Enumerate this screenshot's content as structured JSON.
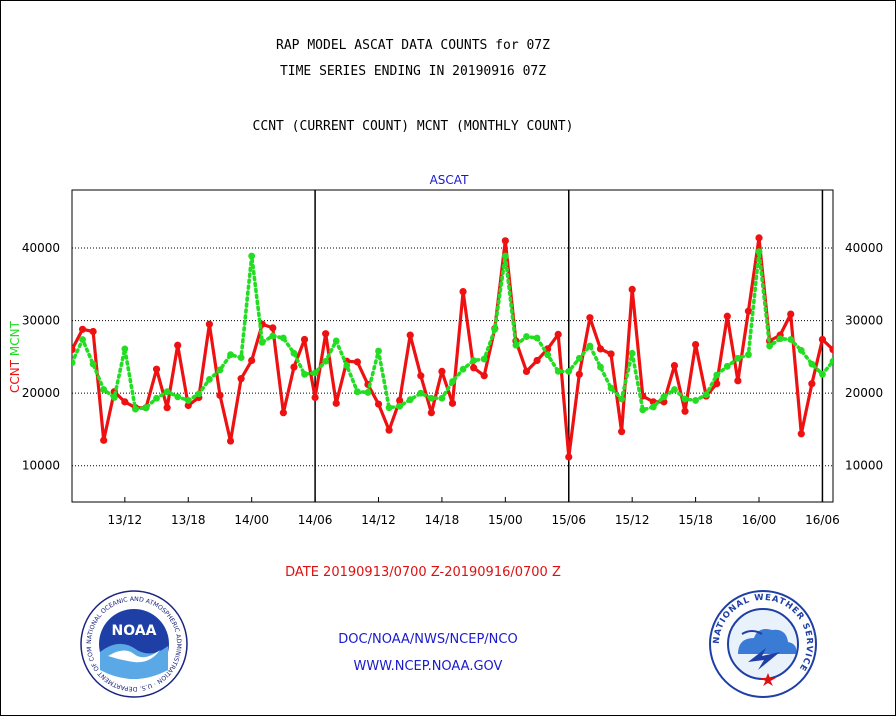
{
  "header": {
    "line1": "RAP MODEL ASCAT DATA COUNTS for 07Z",
    "line2": "TIME SERIES ENDING IN 20190916 07Z",
    "line3": "CCNT (CURRENT COUNT) MCNT (MONTHLY COUNT)"
  },
  "footer": {
    "date_range": "DATE 20190913/0700 Z-20190916/0700 Z",
    "org": "DOC/NOAA/NWS/NCEP/NCO",
    "url": "WWW.NCEP.NOAA.GOV"
  },
  "logos": {
    "noaa": "NOAA",
    "noaa_ring": "NATIONAL OCEANIC AND ATMOSPHERIC ADMINISTRATION · U.S. DEPARTMENT OF COMMERCE",
    "nws_ring": "NATIONAL WEATHER SERVICE"
  },
  "colors": {
    "ccnt": "#ee1111",
    "mcnt": "#22dd22",
    "title_blue": "#1a1acc",
    "date_red": "#dd1111"
  },
  "chart_data": {
    "type": "line",
    "title": "ASCAT",
    "ylabel_left": [
      "CCNT",
      "MCNT"
    ],
    "yticks": [
      10000,
      20000,
      30000,
      40000
    ],
    "ylim": [
      5000,
      48000
    ],
    "xticks": [
      "13/12",
      "13/18",
      "14/00",
      "14/06",
      "14/12",
      "14/18",
      "15/00",
      "15/06",
      "15/12",
      "15/18",
      "16/00",
      "16/06"
    ],
    "xlim_hours": [
      7,
      79
    ],
    "day_boundaries_hours": [
      30,
      54,
      78
    ],
    "grid": "horizontal dotted",
    "series": [
      {
        "name": "CCNT",
        "style": "solid red line with dots",
        "x_hours": [
          7,
          8,
          9,
          10,
          11,
          12,
          13,
          14,
          15,
          16,
          17,
          18,
          19,
          20,
          21,
          22,
          23,
          24,
          25,
          26,
          27,
          28,
          29,
          30,
          31,
          32,
          33,
          34,
          35,
          36,
          37,
          38,
          39,
          40,
          41,
          42,
          43,
          44,
          45,
          46,
          47,
          48,
          49,
          50,
          51,
          52,
          53,
          54,
          55,
          56,
          57,
          58,
          59,
          60,
          61,
          62,
          63,
          64,
          65,
          66,
          67,
          68,
          69,
          70,
          71,
          72,
          73,
          74,
          75,
          76,
          77,
          78,
          79
        ],
        "values": [
          26000,
          28800,
          28500,
          13500,
          20200,
          18800,
          18000,
          18000,
          23300,
          18000,
          26600,
          18300,
          19400,
          29500,
          19700,
          13400,
          22000,
          24500,
          29500,
          29000,
          17300,
          23600,
          27400,
          19400,
          28200,
          18600,
          24400,
          24300,
          21200,
          18500,
          14900,
          19000,
          28000,
          22400,
          17300,
          23000,
          18600,
          34000,
          23500,
          22400,
          28900,
          41000,
          27200,
          23000,
          24500,
          26100,
          28100,
          11200,
          22600,
          30400,
          26100,
          25400,
          14700,
          34300,
          19600,
          18800,
          18800,
          23800,
          17500,
          26700,
          19600,
          21300,
          30600,
          21700,
          31300,
          41400,
          27200,
          28000,
          30900,
          14400,
          21300,
          27400,
          26000
        ]
      },
      {
        "name": "MCNT",
        "style": "dashed green line with dots",
        "x_hours": [
          7,
          8,
          9,
          10,
          11,
          12,
          13,
          14,
          15,
          16,
          17,
          18,
          19,
          20,
          21,
          22,
          23,
          24,
          25,
          26,
          27,
          28,
          29,
          30,
          31,
          32,
          33,
          34,
          35,
          36,
          37,
          38,
          39,
          40,
          41,
          42,
          43,
          44,
          45,
          46,
          47,
          48,
          49,
          50,
          51,
          52,
          53,
          54,
          55,
          56,
          57,
          58,
          59,
          60,
          61,
          62,
          63,
          64,
          65,
          66,
          67,
          68,
          69,
          70,
          71,
          72,
          73,
          74,
          75,
          76,
          77,
          78,
          79
        ],
        "values": [
          24200,
          27400,
          24000,
          20500,
          19400,
          26100,
          17800,
          18000,
          19300,
          20200,
          19500,
          19000,
          19900,
          21900,
          23200,
          25300,
          24900,
          38900,
          27000,
          27900,
          27600,
          25500,
          22600,
          22800,
          24400,
          27200,
          23800,
          20200,
          20100,
          25800,
          18000,
          18200,
          19100,
          20000,
          19300,
          19300,
          21600,
          23300,
          24500,
          24700,
          28800,
          38900,
          26600,
          27800,
          27600,
          25300,
          23000,
          23000,
          24800,
          26500,
          23600,
          20700,
          19200,
          25500,
          17700,
          18100,
          19500,
          20500,
          19200,
          19000,
          19800,
          22500,
          23700,
          24800,
          25300,
          39500,
          26500,
          27500,
          27400,
          25900,
          24000,
          22600,
          24400
        ]
      }
    ]
  }
}
